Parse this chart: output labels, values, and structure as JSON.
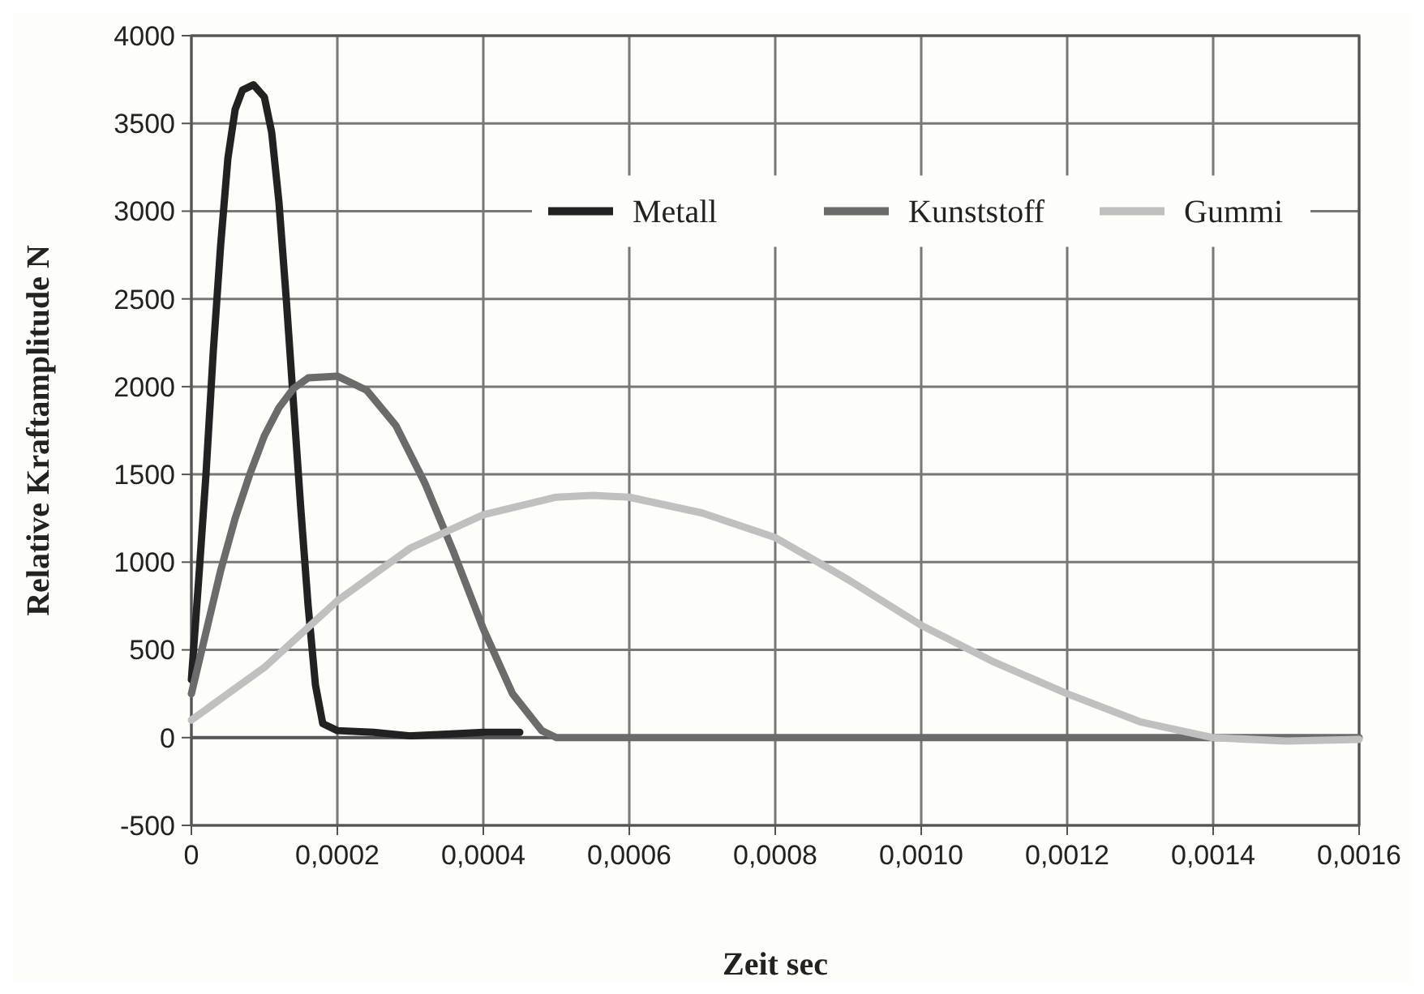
{
  "chart_data": {
    "type": "line",
    "xlabel": "Zeit sec",
    "ylabel": "Relative Kraftamplitude N",
    "xlim": [
      0,
      0.0016
    ],
    "xticks": [
      0,
      {
        "value": 0.0002,
        "label": "0,0002"
      },
      {
        "value": 0.0004,
        "label": "0,0004"
      },
      {
        "value": 0.0006,
        "label": "0,0006"
      },
      {
        "value": 0.0008,
        "label": "0,0008"
      },
      {
        "value": 0.001,
        "label": "0,0010"
      },
      {
        "value": 0.0012,
        "label": "0,0012"
      },
      {
        "value": 0.0014,
        "label": "0,0014"
      },
      {
        "value": 0.0016,
        "label": "0,0016"
      }
    ],
    "ylim": [
      -500,
      4000
    ],
    "yticks": [
      -500,
      0,
      500,
      1000,
      1500,
      2000,
      2500,
      3000,
      3500,
      4000
    ],
    "grid": true,
    "legend": "top right",
    "line_style": "solid",
    "marker": "none",
    "series": [
      {
        "name": "Metall",
        "color": "#222222",
        "x": [
          0,
          1e-05,
          2e-05,
          3e-05,
          4e-05,
          5e-05,
          6e-05,
          7e-05,
          8.5e-05,
          0.0001,
          0.00011,
          0.00012,
          0.00013,
          0.00014,
          0.00015,
          0.00016,
          0.00017,
          0.00018,
          0.0002,
          0.00025,
          0.0003,
          0.00035,
          0.0004,
          0.00045
        ],
        "values": [
          330,
          900,
          1500,
          2200,
          2800,
          3300,
          3580,
          3690,
          3720,
          3650,
          3450,
          3050,
          2500,
          1900,
          1300,
          750,
          300,
          80,
          40,
          30,
          10,
          20,
          30,
          30
        ]
      },
      {
        "name": "Kunststoff",
        "color": "#6b6b6b",
        "x": [
          0,
          2e-05,
          4e-05,
          6e-05,
          8e-05,
          0.0001,
          0.00012,
          0.00014,
          0.00016,
          0.0002,
          0.00024,
          0.00028,
          0.00032,
          0.00036,
          0.0004,
          0.00044,
          0.00048,
          0.0005,
          0.0016
        ],
        "values": [
          250,
          600,
          950,
          1250,
          1500,
          1720,
          1880,
          1990,
          2050,
          2060,
          1980,
          1780,
          1450,
          1050,
          620,
          250,
          40,
          0,
          0
        ]
      },
      {
        "name": "Gummi",
        "color": "#c0c0c0",
        "x": [
          0,
          0.0001,
          0.0002,
          0.0003,
          0.0004,
          0.0005,
          0.00055,
          0.0006,
          0.0007,
          0.0008,
          0.0009,
          0.001,
          0.0011,
          0.0012,
          0.0013,
          0.0014,
          0.0015,
          0.0016
        ],
        "values": [
          100,
          400,
          780,
          1080,
          1270,
          1370,
          1380,
          1370,
          1280,
          1140,
          900,
          640,
          430,
          250,
          90,
          0,
          -20,
          -10
        ]
      }
    ]
  }
}
